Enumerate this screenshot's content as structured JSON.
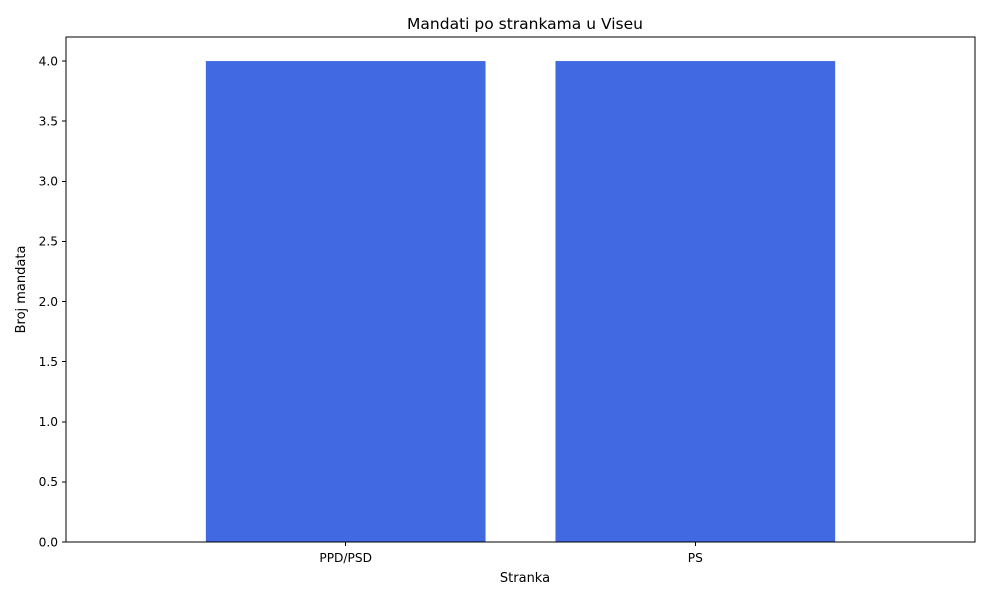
{
  "chart_data": {
    "type": "bar",
    "title": "Mandati po strankama u Viseu",
    "xlabel": "Stranka",
    "ylabel": "Broj mandata",
    "categories": [
      "PPD/PSD",
      "PS"
    ],
    "values": [
      4,
      4
    ],
    "ylim": [
      0,
      4.2
    ],
    "yticks": [
      "0.0",
      "0.5",
      "1.0",
      "1.5",
      "2.0",
      "2.5",
      "3.0",
      "3.5",
      "4.0"
    ],
    "bar_color": "#4169e1",
    "grid": false,
    "legend": "none"
  }
}
